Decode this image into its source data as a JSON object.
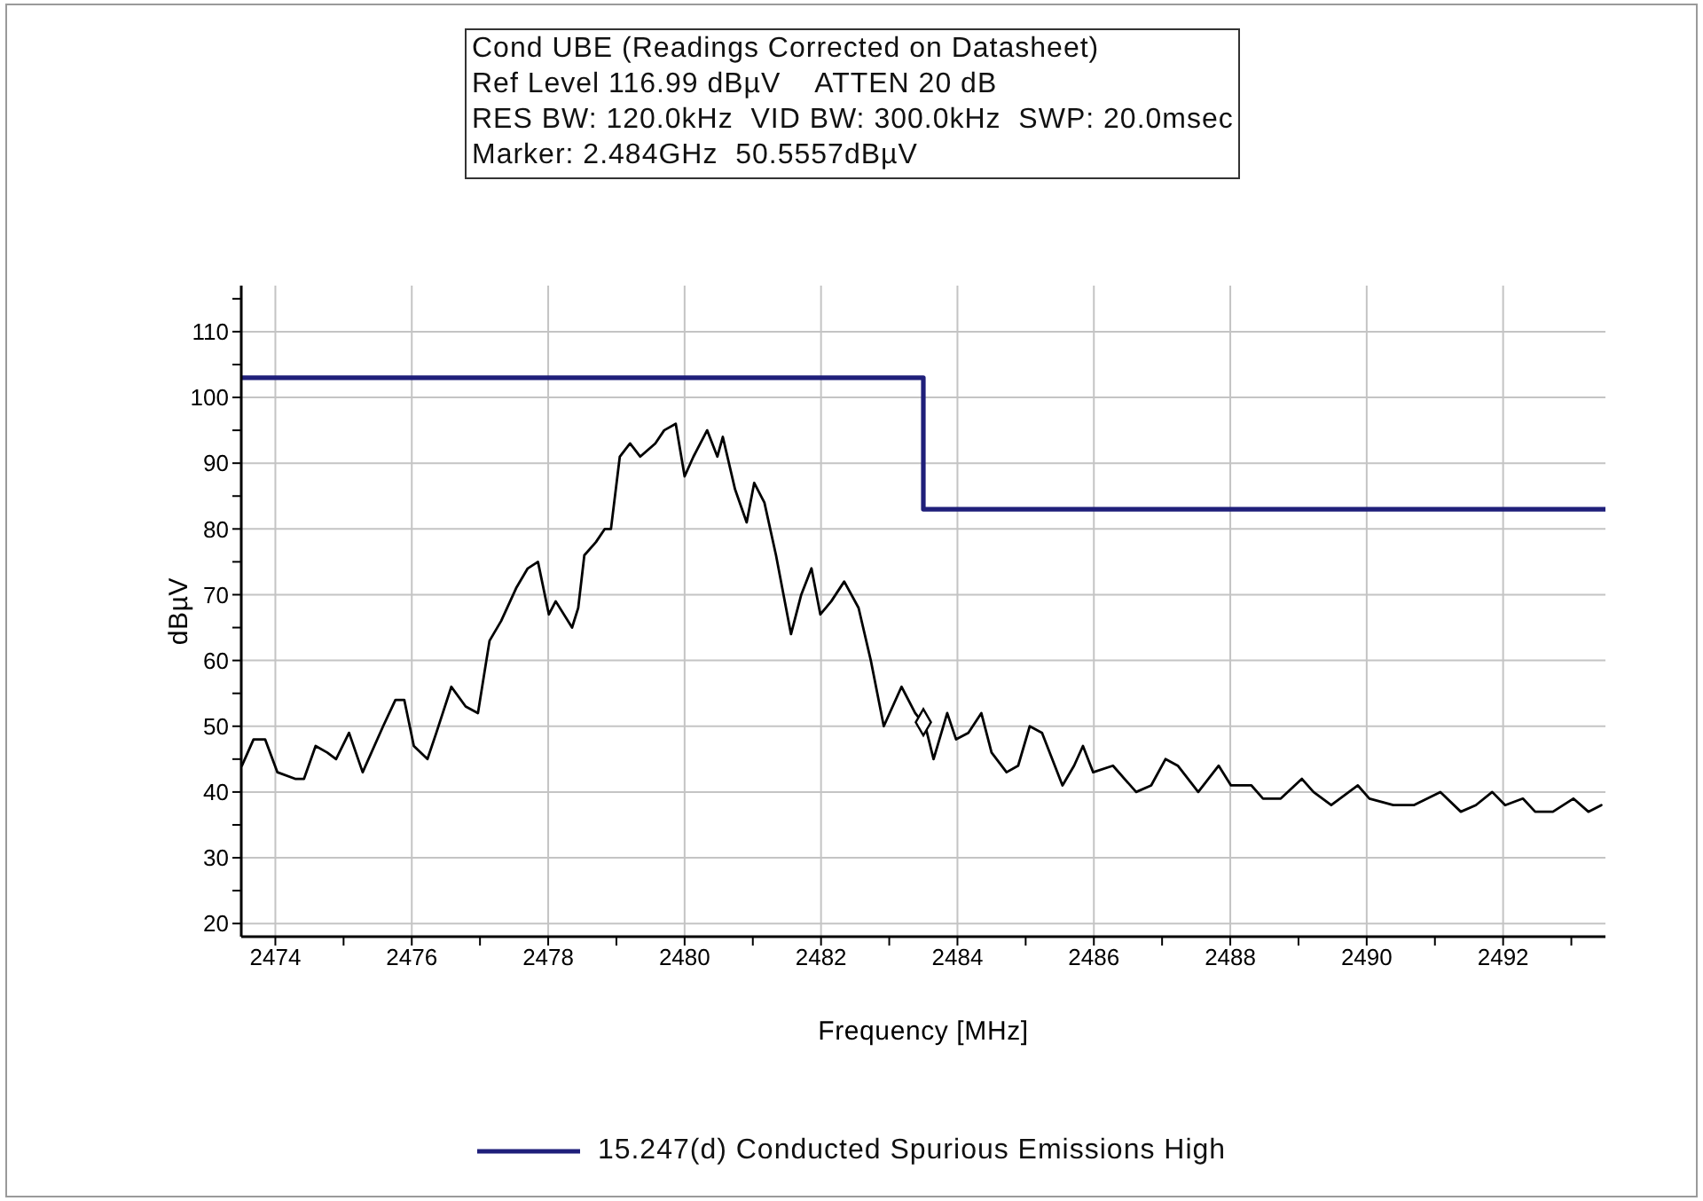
{
  "chart_data": {
    "type": "line",
    "title": "Cond UBE (Readings Corrected on Datasheet)",
    "annotations": [
      "Ref Level 116.99 dBµV    ATTEN 20 dB",
      "RES BW: 120.0kHz  VID BW: 300.0kHz  SWP: 20.0msec",
      "Marker: 2.484GHz  50.5557dBµV"
    ],
    "xlabel": "Frequency [MHz]",
    "ylabel": "dBµV",
    "xlim": [
      2473.5,
      2493.5
    ],
    "ylim": [
      18,
      117
    ],
    "xticks": [
      2474,
      {
        "value": 2475,
        "label": null
      },
      2476,
      {
        "value": 2477,
        "label": null
      },
      2478,
      {
        "value": 2479,
        "label": null
      },
      2480,
      {
        "value": 2481,
        "label": null
      },
      2482,
      {
        "value": 2483,
        "label": null
      },
      2484,
      {
        "value": 2485,
        "label": null
      },
      2486,
      {
        "value": 2487,
        "label": null
      },
      2488,
      {
        "value": 2489,
        "label": null
      },
      2490,
      {
        "value": 2491,
        "label": null
      },
      2492,
      {
        "value": 2493,
        "label": null
      }
    ],
    "yticks": [
      20,
      {
        "value": 25,
        "label": null
      },
      30,
      {
        "value": 35,
        "label": null
      },
      40,
      {
        "value": 45,
        "label": null
      },
      50,
      {
        "value": 55,
        "label": null
      },
      60,
      {
        "value": 65,
        "label": null
      },
      70,
      {
        "value": 75,
        "label": null
      },
      80,
      {
        "value": 85,
        "label": null
      },
      90,
      {
        "value": 95,
        "label": null
      },
      100,
      {
        "value": 105,
        "label": null
      },
      110,
      {
        "value": 115,
        "label": null
      }
    ],
    "grid": true,
    "legend": "bottom",
    "marker": "none",
    "line_style": "solid",
    "series": [
      {
        "name": "15.247(d) Conducted Spurious Emissions High",
        "color": "#1f1f7a",
        "x": [
          2473.5,
          2483.5,
          2483.5,
          2493.5
        ],
        "values": [
          103,
          103,
          83,
          83
        ]
      },
      {
        "color": "#000000",
        "x": [
          2473.51,
          2473.68,
          2473.85,
          2474.03,
          2474.29,
          2474.42,
          2474.59,
          2474.76,
          2474.89,
          2475.08,
          2475.28,
          2475.58,
          2475.76,
          2475.89,
          2476.03,
          2476.23,
          2476.36,
          2476.58,
          2476.79,
          2476.97,
          2477.14,
          2477.31,
          2477.53,
          2477.7,
          2477.85,
          2478.01,
          2478.11,
          2478.35,
          2478.44,
          2478.53,
          2478.7,
          2478.83,
          2478.92,
          2479.05,
          2479.2,
          2479.35,
          2479.57,
          2479.7,
          2479.87,
          2480,
          2480.13,
          2480.33,
          2480.48,
          2480.56,
          2480.74,
          2480.91,
          2481.02,
          2481.17,
          2481.34,
          2481.56,
          2481.71,
          2481.86,
          2481.99,
          2482.15,
          2482.34,
          2482.55,
          2482.73,
          2482.92,
          2483.18,
          2483.38,
          2483.53,
          2483.65,
          2483.85,
          2483.98,
          2484.16,
          2484.35,
          2484.5,
          2484.72,
          2484.89,
          2485.06,
          2485.24,
          2485.54,
          2485.71,
          2485.84,
          2485.99,
          2486.28,
          2486.62,
          2486.84,
          2487.05,
          2487.23,
          2487.53,
          2487.83,
          2488.01,
          2488.31,
          2488.48,
          2488.74,
          2489.05,
          2489.22,
          2489.48,
          2489.87,
          2490.04,
          2490.39,
          2490.69,
          2491.08,
          2491.38,
          2491.6,
          2491.84,
          2492.03,
          2492.29,
          2492.47,
          2492.73,
          2493.03,
          2493.25,
          2493.44
        ],
        "values": [
          44,
          48,
          48,
          43,
          42,
          42,
          47,
          46,
          45,
          49,
          43,
          50,
          54,
          54,
          47,
          45,
          49,
          56,
          53,
          52,
          63,
          66,
          71,
          74,
          75,
          67,
          69,
          65,
          68,
          76,
          78,
          80,
          80,
          91,
          93,
          91,
          93,
          95,
          96,
          88,
          91,
          95,
          91,
          94,
          86,
          81,
          87,
          84,
          76,
          64,
          70,
          74,
          67,
          69,
          72,
          68,
          60,
          50,
          56,
          52,
          50,
          45,
          52,
          48,
          49,
          52,
          46,
          43,
          44,
          50,
          49,
          41,
          44,
          47,
          43,
          44,
          40,
          41,
          45,
          44,
          40,
          44,
          41,
          41,
          39,
          39,
          42,
          40,
          38,
          41,
          39,
          38,
          38,
          40,
          37,
          38,
          40,
          38,
          39,
          37,
          37,
          39,
          37,
          38
        ]
      },
      {
        "type": "scatter",
        "marker": "diamond",
        "color": "#000000",
        "x": [
          2483.5
        ],
        "values": [
          50.6
        ]
      }
    ]
  }
}
